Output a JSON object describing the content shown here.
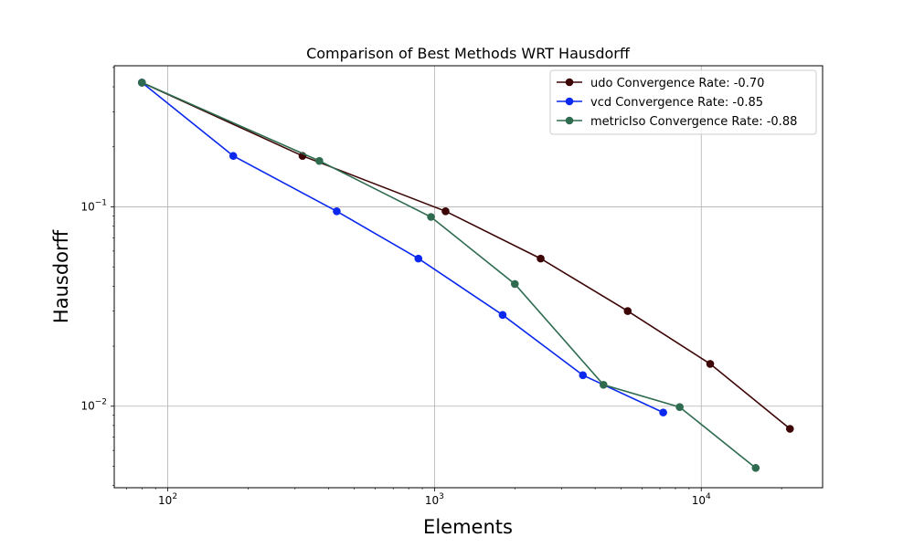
{
  "chart_data": {
    "type": "line",
    "title": "Comparison of Best Methods WRT Hausdorff",
    "xlabel": "Elements",
    "ylabel": "Hausdorff",
    "xscale": "log",
    "yscale": "log",
    "xlim": [
      63,
      28500
    ],
    "ylim": [
      0.0039,
      0.51
    ],
    "grid": true,
    "legend_position": "top-right",
    "x_ticks": [
      {
        "value": 100,
        "base": "10",
        "exp": "2"
      },
      {
        "value": 1000,
        "base": "10",
        "exp": "3"
      },
      {
        "value": 10000,
        "base": "10",
        "exp": "4"
      }
    ],
    "y_ticks": [
      {
        "value": 0.01,
        "base": "10",
        "exp": "−2"
      },
      {
        "value": 0.1,
        "base": "10",
        "exp": "−1"
      }
    ],
    "series": [
      {
        "name": "udo Convergence Rate: -0.70",
        "color": "#3d0505",
        "x": [
          80,
          320,
          1100,
          2500,
          5300,
          10800,
          21500
        ],
        "y": [
          0.42,
          0.18,
          0.095,
          0.055,
          0.03,
          0.0163,
          0.0077
        ]
      },
      {
        "name": "vcd Convergence Rate: -0.85",
        "color": "#0a28ee",
        "x": [
          80,
          176,
          430,
          870,
          1800,
          3600,
          7200
        ],
        "y": [
          0.42,
          0.18,
          0.095,
          0.055,
          0.0287,
          0.0143,
          0.0093
        ]
      },
      {
        "name": "metricIso Convergence Rate: -0.88",
        "color": "#2e6b4f",
        "x": [
          80,
          370,
          970,
          2000,
          4300,
          8300,
          16000
        ],
        "y": [
          0.42,
          0.17,
          0.089,
          0.041,
          0.0128,
          0.0099,
          0.0049
        ]
      }
    ]
  }
}
